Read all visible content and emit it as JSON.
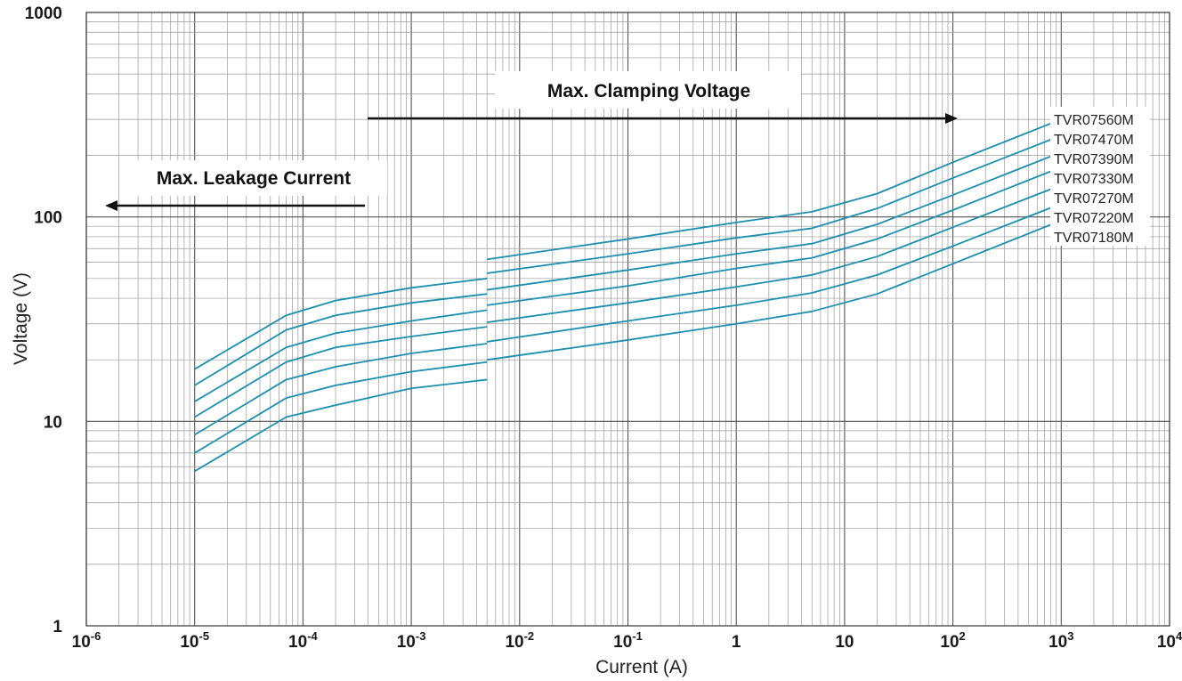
{
  "chart_data": {
    "type": "line",
    "title": "",
    "xlabel": "Current (A)",
    "ylabel": "Voltage (V)",
    "xscale": "log",
    "yscale": "log",
    "xlim": [
      1e-06,
      10000.0
    ],
    "ylim": [
      1,
      1000
    ],
    "x_tick_labels": [
      {
        "base": "10",
        "exp": "-6"
      },
      {
        "base": "10",
        "exp": "-5"
      },
      {
        "base": "10",
        "exp": "-4"
      },
      {
        "base": "10",
        "exp": "-3"
      },
      {
        "base": "10",
        "exp": "-2"
      },
      {
        "base": "10",
        "exp": "-1"
      },
      {
        "base": "1",
        "exp": ""
      },
      {
        "base": "10",
        "exp": ""
      },
      {
        "base": "10",
        "exp": "2"
      },
      {
        "base": "10",
        "exp": "3"
      },
      {
        "base": "10",
        "exp": "4"
      }
    ],
    "y_tick_labels": [
      "1",
      "10",
      "100",
      "1000"
    ],
    "grid": true,
    "line_color": "#1b8fb0",
    "annotations": [
      {
        "text": "Max. Clamping Voltage",
        "direction": "right"
      },
      {
        "text": "Max. Leakage Current",
        "direction": "left"
      }
    ],
    "legend_placement": "right",
    "series": [
      {
        "name": "TVR07560M",
        "leakage": [
          [
            1e-05,
            18
          ],
          [
            7e-05,
            33
          ],
          [
            0.0002,
            39
          ],
          [
            0.001,
            45
          ],
          [
            0.005,
            50
          ]
        ],
        "clamping": [
          [
            0.005,
            62
          ],
          [
            0.1,
            78
          ],
          [
            1,
            94
          ],
          [
            5,
            106
          ],
          [
            20,
            130
          ],
          [
            100,
            185
          ],
          [
            1000,
            300
          ]
        ]
      },
      {
        "name": "TVR07470M",
        "leakage": [
          [
            1e-05,
            15
          ],
          [
            7e-05,
            28
          ],
          [
            0.0002,
            33
          ],
          [
            0.001,
            38
          ],
          [
            0.005,
            42
          ]
        ],
        "clamping": [
          [
            0.005,
            53
          ],
          [
            0.1,
            66
          ],
          [
            1,
            79
          ],
          [
            5,
            88
          ],
          [
            20,
            110
          ],
          [
            100,
            155
          ],
          [
            1000,
            250
          ]
        ]
      },
      {
        "name": "TVR07390M",
        "leakage": [
          [
            1e-05,
            12.5
          ],
          [
            7e-05,
            23
          ],
          [
            0.0002,
            27
          ],
          [
            0.001,
            31
          ],
          [
            0.005,
            35
          ]
        ],
        "clamping": [
          [
            0.005,
            44
          ],
          [
            0.1,
            55
          ],
          [
            1,
            66
          ],
          [
            5,
            74
          ],
          [
            20,
            92
          ],
          [
            100,
            128
          ],
          [
            1000,
            207
          ]
        ]
      },
      {
        "name": "TVR07330M",
        "leakage": [
          [
            1e-05,
            10.5
          ],
          [
            7e-05,
            19.5
          ],
          [
            0.0002,
            23
          ],
          [
            0.001,
            26
          ],
          [
            0.005,
            29
          ]
        ],
        "clamping": [
          [
            0.005,
            37
          ],
          [
            0.1,
            46
          ],
          [
            1,
            56
          ],
          [
            5,
            63
          ],
          [
            20,
            78
          ],
          [
            100,
            108
          ],
          [
            1000,
            175
          ]
        ]
      },
      {
        "name": "TVR07270M",
        "leakage": [
          [
            1e-05,
            8.6
          ],
          [
            7e-05,
            16
          ],
          [
            0.0002,
            18.5
          ],
          [
            0.001,
            21.5
          ],
          [
            0.005,
            24
          ]
        ],
        "clamping": [
          [
            0.005,
            30.5
          ],
          [
            0.1,
            38
          ],
          [
            1,
            45.5
          ],
          [
            5,
            52
          ],
          [
            20,
            64
          ],
          [
            100,
            89
          ],
          [
            1000,
            143
          ]
        ]
      },
      {
        "name": "TVR07220M",
        "leakage": [
          [
            1e-05,
            7
          ],
          [
            7e-05,
            13
          ],
          [
            0.0002,
            15
          ],
          [
            0.001,
            17.5
          ],
          [
            0.005,
            19.5
          ]
        ],
        "clamping": [
          [
            0.005,
            24.5
          ],
          [
            0.1,
            31
          ],
          [
            1,
            37
          ],
          [
            5,
            42.5
          ],
          [
            20,
            52
          ],
          [
            100,
            72
          ],
          [
            1000,
            116
          ]
        ]
      },
      {
        "name": "TVR07180M",
        "leakage": [
          [
            1e-05,
            5.7
          ],
          [
            7e-05,
            10.5
          ],
          [
            0.0002,
            12
          ],
          [
            0.001,
            14.5
          ],
          [
            0.005,
            16
          ]
        ],
        "clamping": [
          [
            0.005,
            20
          ],
          [
            0.1,
            25
          ],
          [
            1,
            30
          ],
          [
            5,
            34.5
          ],
          [
            20,
            42
          ],
          [
            100,
            59
          ],
          [
            1000,
            96
          ]
        ]
      }
    ]
  }
}
